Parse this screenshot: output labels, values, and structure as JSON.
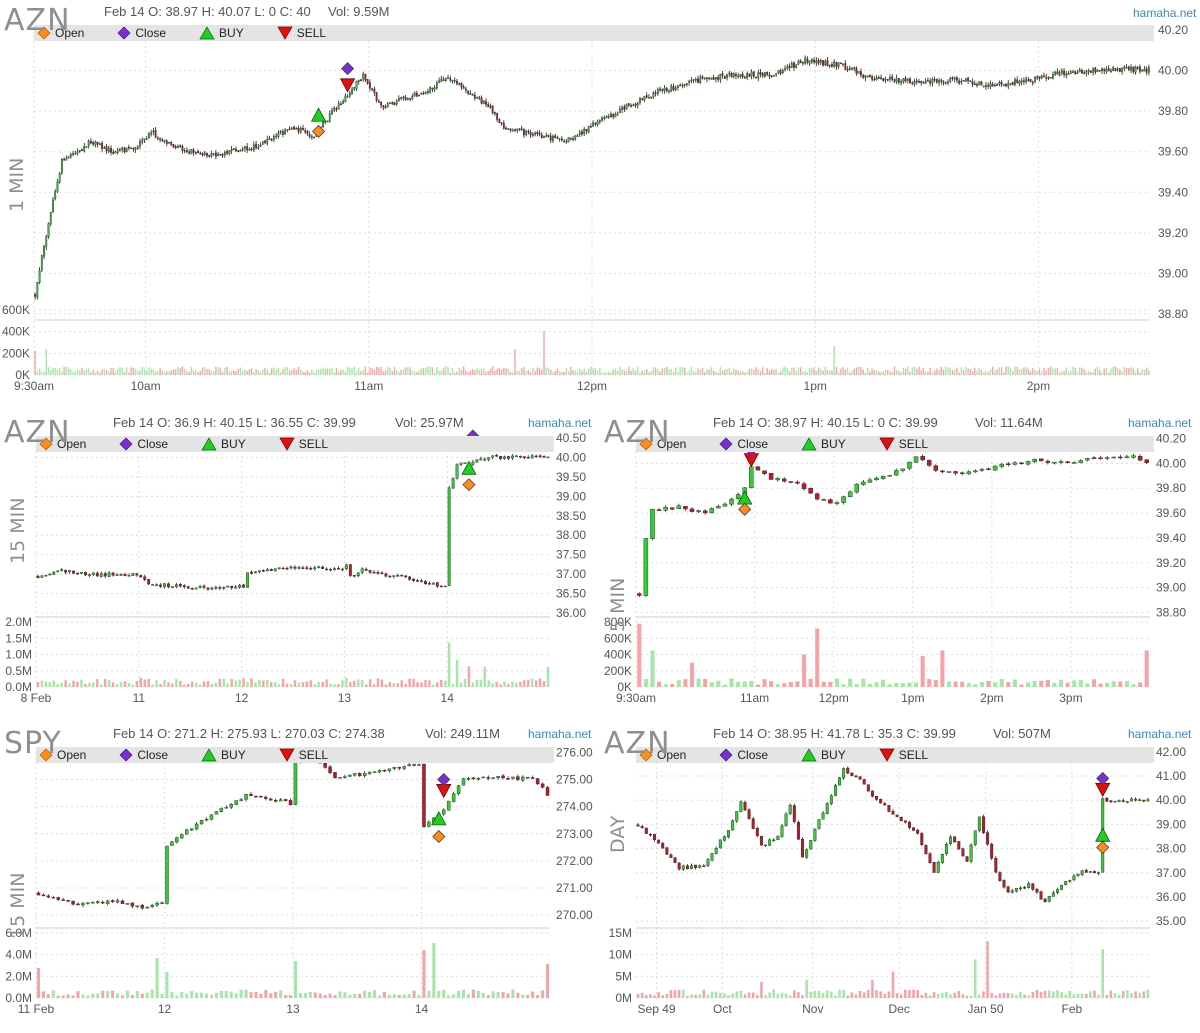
{
  "legend": {
    "open": "Open",
    "close": "Close",
    "buy": "BUY",
    "sell": "SELL"
  },
  "colors": {
    "up": "#33cc33",
    "down": "#b71c2b",
    "vol_up": "#a6e6a6",
    "vol_down": "#f4a4a8",
    "open_marker": "#ff8c1a",
    "close_marker": "#7b2fd1",
    "buy_marker": "#22cc22",
    "sell_marker": "#dd1111",
    "legend_bg": "#e4e4e4",
    "grid": "#dddddd",
    "brand": "#3b87b9"
  },
  "charts": [
    {
      "id": "p1",
      "symbol": "AZN",
      "quote": "Feb 14 O: 38.97 H: 40.07 L: 0 C: 40",
      "volume": "Vol: 9.59M",
      "brand": "hamaha.net",
      "timeframe": "1 MIN"
    },
    {
      "id": "p2",
      "symbol": "AZN",
      "quote": "Feb 14 O: 36.9 H: 40.15 L: 36.55 C: 39.99",
      "volume": "Vol: 25.97M",
      "brand": "hamaha.net",
      "timeframe": "15 MIN"
    },
    {
      "id": "p3",
      "symbol": "AZN",
      "quote": "Feb 14 O: 38.97 H: 40.15 L: 0 C: 39.99",
      "volume": "Vol: 11.64M",
      "brand": "hamaha.net",
      "timeframe": "5 MIN"
    },
    {
      "id": "p4",
      "symbol": "SPY",
      "quote": "Feb 14 O: 271.2 H: 275.93 L: 270.03 C: 274.38",
      "volume": "Vol: 249.11M",
      "brand": "hamaha.net",
      "timeframe": "15 MIN"
    },
    {
      "id": "p5",
      "symbol": "AZN",
      "quote": "Feb 14 O: 38.95 H: 41.78 L: 35.3 C: 39.99",
      "volume": "Vol: 507M",
      "brand": "hamaha.net",
      "timeframe": "DAY"
    }
  ],
  "chart_data": [
    {
      "type": "candlestick",
      "title": "AZN 1 MIN",
      "n": 500,
      "price_ticks": [
        "40.20",
        "40.00",
        "39.80",
        "39.60",
        "39.40",
        "39.20",
        "39.00",
        "38.80"
      ],
      "ylim": [
        38.78,
        40.22
      ],
      "volume_ticks": [
        "600K",
        "400K",
        "200K",
        "0K"
      ],
      "vol_max": 650000,
      "x_ticks": [
        {
          "label": "9:30am",
          "i": 0
        },
        {
          "label": "10am",
          "i": 50
        },
        {
          "label": "11am",
          "i": 150
        },
        {
          "label": "12pm",
          "i": 250
        },
        {
          "label": "1pm",
          "i": 350
        },
        {
          "label": "2pm",
          "i": 450
        }
      ],
      "key": [
        [
          0,
          38.9
        ],
        [
          6,
          39.25
        ],
        [
          12,
          39.55
        ],
        [
          25,
          39.65
        ],
        [
          35,
          39.6
        ],
        [
          45,
          39.62
        ],
        [
          52,
          39.7
        ],
        [
          62,
          39.62
        ],
        [
          80,
          39.58
        ],
        [
          100,
          39.63
        ],
        [
          115,
          39.72
        ],
        [
          125,
          39.68
        ],
        [
          135,
          39.82
        ],
        [
          140,
          39.88
        ],
        [
          147,
          39.98
        ],
        [
          155,
          39.82
        ],
        [
          165,
          39.86
        ],
        [
          175,
          39.9
        ],
        [
          185,
          39.97
        ],
        [
          195,
          39.89
        ],
        [
          203,
          39.83
        ],
        [
          210,
          39.72
        ],
        [
          225,
          39.68
        ],
        [
          238,
          39.65
        ],
        [
          248,
          39.72
        ],
        [
          265,
          39.82
        ],
        [
          280,
          39.9
        ],
        [
          290,
          39.93
        ],
        [
          300,
          39.96
        ],
        [
          315,
          39.98
        ],
        [
          330,
          39.98
        ],
        [
          345,
          40.05
        ],
        [
          360,
          40.03
        ],
        [
          375,
          39.96
        ],
        [
          395,
          39.95
        ],
        [
          415,
          39.95
        ],
        [
          430,
          39.93
        ],
        [
          445,
          39.95
        ],
        [
          460,
          39.99
        ],
        [
          475,
          40.0
        ],
        [
          490,
          40.01
        ],
        [
          500,
          40.0
        ]
      ],
      "vol_spikes": [
        [
          0,
          240000
        ],
        [
          5,
          260000
        ],
        [
          215,
          260000
        ],
        [
          228,
          440000
        ],
        [
          358,
          290000
        ]
      ],
      "markers": [
        {
          "i": 127,
          "type": "buy",
          "price": 39.78
        },
        {
          "i": 127,
          "type": "open",
          "price": 39.7
        },
        {
          "i": 140,
          "type": "sell",
          "price": 39.93
        },
        {
          "i": 140,
          "type": "close",
          "price": 40.01
        }
      ]
    },
    {
      "type": "candlestick",
      "title": "AZN 15 MIN",
      "n": 130,
      "price_ticks": [
        "40.50",
        "40.00",
        "39.50",
        "39.00",
        "38.50",
        "38.00",
        "37.50",
        "37.00",
        "36.50",
        "36.00"
      ],
      "ylim": [
        35.95,
        40.55
      ],
      "volume_ticks": [
        "2.0M",
        "1.5M",
        "1.0M",
        "0.5M",
        "0.0M"
      ],
      "vol_max": 2200000,
      "x_ticks": [
        {
          "label": "8 Feb",
          "i": 0
        },
        {
          "label": "11",
          "i": 26
        },
        {
          "label": "12",
          "i": 52
        },
        {
          "label": "13",
          "i": 78
        },
        {
          "label": "14",
          "i": 104
        }
      ],
      "key": [
        [
          0,
          36.95
        ],
        [
          6,
          37.1
        ],
        [
          12,
          37.0
        ],
        [
          25,
          36.98
        ],
        [
          28,
          36.75
        ],
        [
          40,
          36.65
        ],
        [
          48,
          36.65
        ],
        [
          52,
          36.7
        ],
        [
          53,
          37.05
        ],
        [
          62,
          37.15
        ],
        [
          76,
          37.15
        ],
        [
          78,
          37.2
        ],
        [
          79,
          36.95
        ],
        [
          82,
          37.1
        ],
        [
          93,
          36.9
        ],
        [
          103,
          36.68
        ],
        [
          104,
          39.2
        ],
        [
          106,
          39.8
        ],
        [
          115,
          40.0
        ],
        [
          130,
          40.0
        ]
      ],
      "vol_spikes": [
        [
          104,
          1500000
        ],
        [
          106,
          920000
        ],
        [
          109,
          700000
        ],
        [
          113,
          680000
        ],
        [
          129,
          680000
        ],
        [
          26,
          320000
        ],
        [
          52,
          300000
        ],
        [
          78,
          320000
        ]
      ],
      "markers": [
        {
          "i": 109,
          "type": "buy",
          "price": 39.72
        },
        {
          "i": 109,
          "type": "open",
          "price": 39.3
        },
        {
          "i": 110,
          "type": "sell",
          "price": 40.38
        },
        {
          "i": 110,
          "type": "close",
          "price": 40.55
        }
      ]
    },
    {
      "type": "candlestick",
      "title": "AZN 5 MIN",
      "n": 78,
      "price_ticks": [
        "40.20",
        "40.00",
        "39.80",
        "39.60",
        "39.40",
        "39.20",
        "39.00",
        "38.80"
      ],
      "ylim": [
        38.78,
        40.22
      ],
      "volume_ticks": [
        "800K",
        "600K",
        "400K",
        "200K",
        "0K"
      ],
      "vol_max": 800000,
      "x_ticks": [
        {
          "label": "9:30am",
          "i": 0
        },
        {
          "label": "11am",
          "i": 18
        },
        {
          "label": "12pm",
          "i": 30
        },
        {
          "label": "1pm",
          "i": 42
        },
        {
          "label": "2pm",
          "i": 54
        },
        {
          "label": "3pm",
          "i": 66
        }
      ],
      "key": [
        [
          0,
          38.95
        ],
        [
          1,
          39.4
        ],
        [
          2,
          39.62
        ],
        [
          6,
          39.65
        ],
        [
          10,
          39.6
        ],
        [
          14,
          39.7
        ],
        [
          16,
          39.8
        ],
        [
          17,
          39.98
        ],
        [
          20,
          39.88
        ],
        [
          24,
          39.85
        ],
        [
          27,
          39.7
        ],
        [
          30,
          39.68
        ],
        [
          33,
          39.82
        ],
        [
          36,
          39.88
        ],
        [
          40,
          39.95
        ],
        [
          42,
          40.05
        ],
        [
          45,
          39.95
        ],
        [
          50,
          39.92
        ],
        [
          55,
          39.98
        ],
        [
          60,
          40.02
        ],
        [
          66,
          40.02
        ],
        [
          72,
          40.05
        ],
        [
          75,
          40.05
        ],
        [
          78,
          39.97
        ]
      ],
      "vol_spikes": [
        [
          0,
          780000
        ],
        [
          2,
          450000
        ],
        [
          27,
          720000
        ],
        [
          25,
          400000
        ],
        [
          43,
          380000
        ],
        [
          46,
          450000
        ],
        [
          77,
          450000
        ],
        [
          8,
          300000
        ]
      ],
      "markers": [
        {
          "i": 16,
          "type": "buy",
          "price": 39.72
        },
        {
          "i": 16,
          "type": "open",
          "price": 39.63
        },
        {
          "i": 17,
          "type": "sell",
          "price": 40.03
        },
        {
          "i": 17,
          "type": "close",
          "price": 40.11
        }
      ]
    },
    {
      "type": "candlestick",
      "title": "SPY 15 MIN",
      "n": 104,
      "price_ticks": [
        "276.00",
        "275.00",
        "274.00",
        "273.00",
        "272.00",
        "271.00",
        "270.00"
      ],
      "ylim": [
        269.6,
        276.2
      ],
      "volume_ticks": [
        "6.0M",
        "4.0M",
        "2.0M",
        "0.0M"
      ],
      "vol_max": 6500000,
      "x_ticks": [
        {
          "label": "11 Feb",
          "i": 0
        },
        {
          "label": "12",
          "i": 26
        },
        {
          "label": "13",
          "i": 52
        },
        {
          "label": "14",
          "i": 78
        }
      ],
      "key": [
        [
          0,
          270.8
        ],
        [
          8,
          270.4
        ],
        [
          16,
          270.5
        ],
        [
          20,
          270.3
        ],
        [
          25,
          270.4
        ],
        [
          26,
          272.5
        ],
        [
          30,
          273.1
        ],
        [
          36,
          273.8
        ],
        [
          42,
          274.4
        ],
        [
          50,
          274.2
        ],
        [
          51,
          274.0
        ],
        [
          52,
          275.7
        ],
        [
          56,
          275.8
        ],
        [
          60,
          275.1
        ],
        [
          66,
          275.2
        ],
        [
          72,
          275.4
        ],
        [
          77,
          275.6
        ],
        [
          78,
          273.3
        ],
        [
          82,
          273.9
        ],
        [
          86,
          275.0
        ],
        [
          94,
          275.1
        ],
        [
          100,
          275.0
        ],
        [
          104,
          274.3
        ]
      ],
      "vol_spikes": [
        [
          0,
          3000000
        ],
        [
          26,
          2600000
        ],
        [
          52,
          3700000
        ],
        [
          78,
          4800000
        ],
        [
          80,
          5500000
        ],
        [
          103,
          3400000
        ],
        [
          24,
          4000000
        ]
      ],
      "markers": [
        {
          "i": 81,
          "type": "buy",
          "price": 273.55
        },
        {
          "i": 81,
          "type": "open",
          "price": 272.9
        },
        {
          "i": 82,
          "type": "sell",
          "price": 274.6
        },
        {
          "i": 82,
          "type": "close",
          "price": 275.0
        }
      ]
    },
    {
      "type": "candlestick",
      "title": "AZN DAY",
      "n": 125,
      "price_ticks": [
        "42.00",
        "41.00",
        "40.00",
        "39.00",
        "38.00",
        "37.00",
        "36.00",
        "35.00"
      ],
      "ylim": [
        34.8,
        42.2
      ],
      "volume_ticks": [
        "15M",
        "10M",
        "5M",
        "0M"
      ],
      "vol_max": 16000000,
      "x_ticks": [
        {
          "label": "Sep 49",
          "i": 5
        },
        {
          "label": "Oct",
          "i": 21
        },
        {
          "label": "Nov",
          "i": 43
        },
        {
          "label": "Dec",
          "i": 64
        },
        {
          "label": "Jan 50",
          "i": 85
        },
        {
          "label": "Feb",
          "i": 106
        }
      ],
      "key": [
        [
          0,
          39.0
        ],
        [
          6,
          38.0
        ],
        [
          10,
          37.2
        ],
        [
          16,
          37.3
        ],
        [
          22,
          38.8
        ],
        [
          25,
          40.0
        ],
        [
          30,
          38.1
        ],
        [
          34,
          38.5
        ],
        [
          37,
          39.8
        ],
        [
          40,
          37.6
        ],
        [
          44,
          39.2
        ],
        [
          47,
          40.2
        ],
        [
          50,
          41.3
        ],
        [
          54,
          40.8
        ],
        [
          58,
          40.0
        ],
        [
          64,
          39.2
        ],
        [
          68,
          38.6
        ],
        [
          72,
          37.0
        ],
        [
          76,
          38.5
        ],
        [
          80,
          37.5
        ],
        [
          83,
          39.3
        ],
        [
          87,
          37.0
        ],
        [
          90,
          36.2
        ],
        [
          95,
          36.5
        ],
        [
          99,
          35.8
        ],
        [
          103,
          36.5
        ],
        [
          108,
          37.1
        ],
        [
          112,
          37.0
        ],
        [
          113,
          40.0
        ]
      ],
      "vol_spikes": [
        [
          41,
          4500000
        ],
        [
          57,
          4500000
        ],
        [
          62,
          6500000
        ],
        [
          82,
          9500000
        ],
        [
          85,
          14000000
        ],
        [
          113,
          12000000
        ],
        [
          30,
          4000000
        ]
      ],
      "markers": [
        {
          "i": 113,
          "type": "buy",
          "price": 38.55
        },
        {
          "i": 113,
          "type": "open",
          "price": 38.05
        },
        {
          "i": 113,
          "type": "sell",
          "price": 40.45
        },
        {
          "i": 113,
          "type": "close",
          "price": 40.9
        }
      ]
    }
  ]
}
